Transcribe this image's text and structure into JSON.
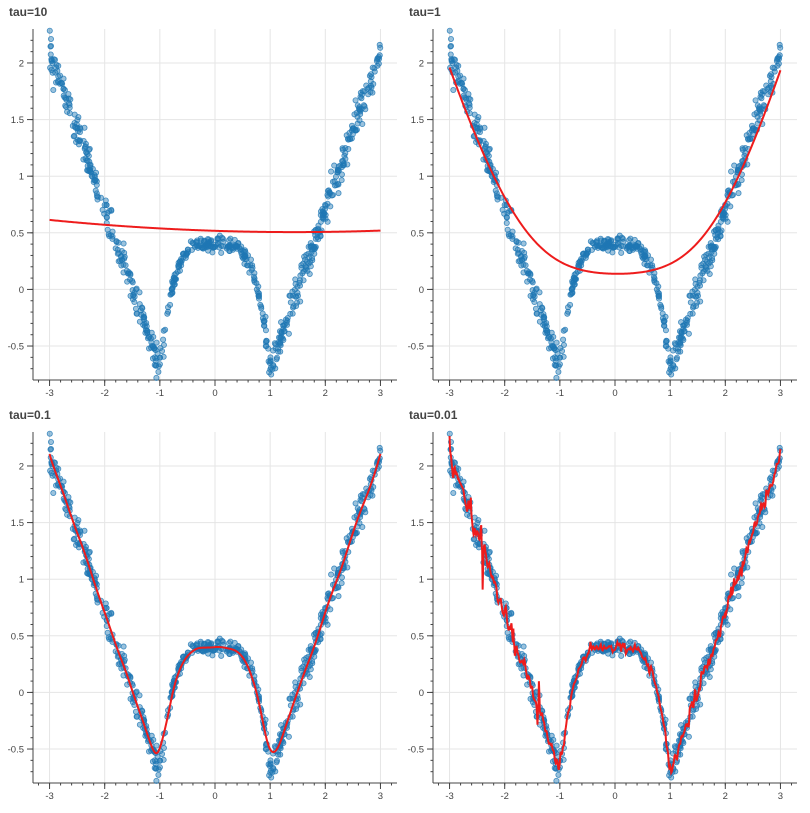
{
  "colors": {
    "points": "#1f77b4",
    "fit": "#ee1c1c",
    "grid": "#e5e5e5",
    "axis": "#444444"
  },
  "chart_data": [
    {
      "type": "scatter",
      "title": "tau=10",
      "xlim": [
        -3.3,
        3.3
      ],
      "ylim": [
        -0.8,
        2.3
      ],
      "xticks": [
        "-3",
        "-2",
        "-1",
        "0",
        "1",
        "2",
        "3"
      ],
      "yticks": [
        "-0.5",
        "0",
        "0.5",
        "1",
        "1.5",
        "2"
      ],
      "grid": true,
      "tau": 10,
      "fit_sample": {
        "x": [
          -3,
          -2,
          -1,
          0,
          1,
          2,
          3
        ],
        "y": [
          0.82,
          0.79,
          0.775,
          0.77,
          0.775,
          0.79,
          0.82
        ]
      }
    },
    {
      "type": "scatter",
      "title": "tau=1",
      "xlim": [
        -3.3,
        3.3
      ],
      "ylim": [
        -0.8,
        2.3
      ],
      "xticks": [
        "-3",
        "-2",
        "-1",
        "0",
        "1",
        "2",
        "3"
      ],
      "yticks": [
        "-0.5",
        "0",
        "0.5",
        "1",
        "1.5",
        "2"
      ],
      "grid": true,
      "tau": 1,
      "fit_sample": {
        "x": [
          -3,
          -2,
          -1,
          0,
          1,
          2,
          3
        ],
        "y": [
          2.18,
          1.2,
          0.5,
          0.24,
          0.5,
          1.2,
          2.18
        ]
      }
    },
    {
      "type": "scatter",
      "title": "tau=0.1",
      "xlim": [
        -3.3,
        3.3
      ],
      "ylim": [
        -0.8,
        2.3
      ],
      "xticks": [
        "-3",
        "-2",
        "-1",
        "0",
        "1",
        "2",
        "3"
      ],
      "yticks": [
        "-0.5",
        "0",
        "0.5",
        "1",
        "1.5",
        "2"
      ],
      "grid": true,
      "tau": 0.1,
      "fit_sample": {
        "x": [
          -3,
          -2,
          -1,
          0,
          1,
          2,
          3
        ],
        "y": [
          2.08,
          1.05,
          -0.35,
          0.38,
          -0.35,
          1.05,
          2.08
        ]
      }
    },
    {
      "type": "scatter",
      "title": "tau=0.01",
      "xlim": [
        -3.3,
        3.3
      ],
      "ylim": [
        -0.8,
        2.3
      ],
      "xticks": [
        "-3",
        "-2",
        "-1",
        "0",
        "1",
        "2",
        "3"
      ],
      "yticks": [
        "-0.5",
        "0",
        "0.5",
        "1",
        "1.5",
        "2"
      ],
      "grid": true,
      "tau": 0.01,
      "fit_sample": {
        "x": [
          -3,
          -2,
          -1,
          0,
          1,
          2,
          3
        ],
        "y": [
          2.1,
          1.0,
          -0.5,
          0.4,
          -0.5,
          1.0,
          2.1
        ]
      }
    }
  ]
}
